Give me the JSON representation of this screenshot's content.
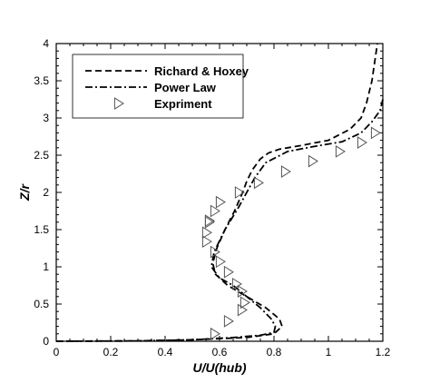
{
  "chart_data": {
    "type": "line",
    "xlabel": "U/U(hub)",
    "ylabel": "Z/r",
    "xlim": [
      0,
      1.2
    ],
    "ylim": [
      0,
      4
    ],
    "x_ticks": [
      "0",
      "0.2",
      "0.4",
      "0.6",
      "0.8",
      "1",
      "1.2"
    ],
    "y_ticks": [
      "0",
      "0.5",
      "1",
      "1.5",
      "2",
      "2.5",
      "3",
      "3.5",
      "4"
    ],
    "grid": false,
    "legend_position": "top-left",
    "series": [
      {
        "name": "Richard & Hoxey",
        "style": "dashed",
        "x": [
          0.0,
          0.3,
          0.5,
          0.7,
          0.8,
          0.83,
          0.82,
          0.77,
          0.7,
          0.63,
          0.585,
          0.575,
          0.59,
          0.62,
          0.655,
          0.685,
          0.7,
          0.72,
          0.75,
          0.78,
          0.82,
          0.9,
          1.0,
          1.08,
          1.12,
          1.14,
          1.16,
          1.18
        ],
        "y": [
          0.0,
          0.005,
          0.02,
          0.05,
          0.1,
          0.2,
          0.3,
          0.45,
          0.6,
          0.75,
          0.9,
          1.05,
          1.25,
          1.5,
          1.75,
          2.0,
          2.15,
          2.3,
          2.45,
          2.53,
          2.58,
          2.63,
          2.7,
          2.85,
          3.0,
          3.2,
          3.5,
          4.0
        ]
      },
      {
        "name": "Power Law",
        "style": "dashdot",
        "x": [
          0.0,
          0.3,
          0.5,
          0.65,
          0.75,
          0.8,
          0.805,
          0.79,
          0.75,
          0.7,
          0.65,
          0.6,
          0.57,
          0.58,
          0.62,
          0.67,
          0.7,
          0.73,
          0.77,
          0.85,
          0.95,
          1.05,
          1.12,
          1.16,
          1.19,
          1.2
        ],
        "y": [
          0.0,
          0.005,
          0.02,
          0.05,
          0.08,
          0.12,
          0.2,
          0.3,
          0.45,
          0.6,
          0.75,
          0.85,
          1.0,
          1.2,
          1.5,
          1.8,
          2.0,
          2.2,
          2.4,
          2.55,
          2.62,
          2.68,
          2.8,
          2.95,
          3.1,
          3.25
        ]
      },
      {
        "name": "Expriment",
        "style": "marker-triangle-right",
        "x": [
          0.58,
          0.63,
          0.68,
          0.69,
          0.68,
          0.66,
          0.63,
          0.6,
          0.58,
          0.55,
          0.55,
          0.56,
          0.56,
          0.58,
          0.6,
          0.67,
          0.74,
          0.84,
          0.94,
          1.04,
          1.12,
          1.17
        ],
        "y": [
          0.1,
          0.27,
          0.42,
          0.52,
          0.67,
          0.77,
          0.93,
          1.07,
          1.2,
          1.34,
          1.46,
          1.6,
          1.62,
          1.75,
          1.87,
          2.0,
          2.13,
          2.28,
          2.42,
          2.55,
          2.67,
          2.8
        ]
      }
    ]
  }
}
